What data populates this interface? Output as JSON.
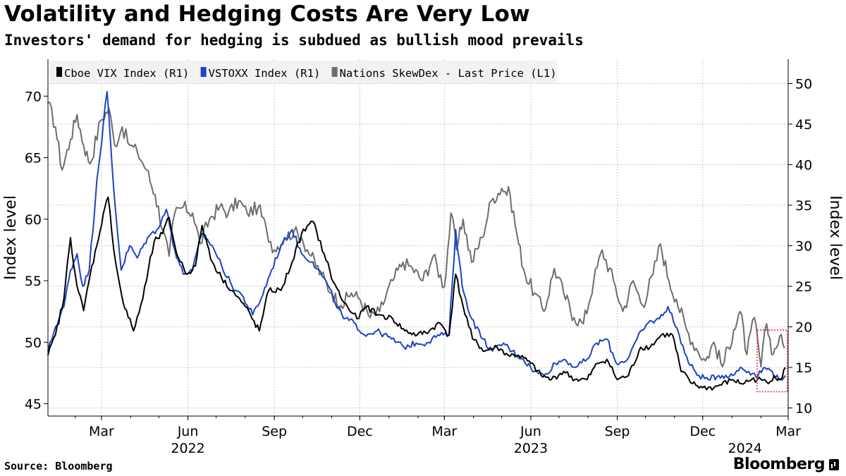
{
  "title": "Volatility and Hedging Costs Are Very Low",
  "subtitle": "Investors' demand for hedging is subdued as bullish mood prevails",
  "source": "Source: Bloomberg",
  "logo": "Bloomberg",
  "chart_data": {
    "type": "line",
    "legend_position": "top-left",
    "grid": true,
    "y_left": {
      "label": "Index level",
      "range": [
        44,
        73
      ],
      "ticks": [
        45,
        50,
        55,
        60,
        65,
        70
      ]
    },
    "y_right": {
      "label": "Index level",
      "range": [
        9,
        53
      ],
      "ticks": [
        10,
        15,
        20,
        25,
        30,
        35,
        40,
        45,
        50
      ]
    },
    "x_axis": {
      "range": [
        "2022-01-03",
        "2024-03-01"
      ],
      "ticks": [
        {
          "date": "2022-03-01",
          "label": "Mar"
        },
        {
          "date": "2022-06-01",
          "label": "Jun"
        },
        {
          "date": "2022-09-01",
          "label": "Sep"
        },
        {
          "date": "2022-12-01",
          "label": "Dec"
        },
        {
          "date": "2023-03-01",
          "label": "Mar"
        },
        {
          "date": "2023-06-01",
          "label": "Jun"
        },
        {
          "date": "2023-09-01",
          "label": "Sep"
        },
        {
          "date": "2023-12-01",
          "label": "Dec"
        },
        {
          "date": "2024-03-01",
          "label": "Mar"
        }
      ],
      "year_labels": [
        {
          "date": "2022-06-01",
          "label": "2022"
        },
        {
          "date": "2023-06-01",
          "label": "2023"
        },
        {
          "date": "2024-01-15",
          "label": "2024"
        }
      ]
    },
    "highlight_box": {
      "x_range": [
        "2024-01-28",
        "2024-02-29"
      ],
      "y_right_range": [
        12.0,
        19.6
      ],
      "color": "#e2304a"
    },
    "series": [
      {
        "name": "Nations SkewDex - Last Price (L1)",
        "axis": "left",
        "color": "#6d6d6d",
        "points": [
          [
            "2022-01-03",
            69.5
          ],
          [
            "2022-01-11",
            67.5
          ],
          [
            "2022-01-18",
            64.0
          ],
          [
            "2022-01-27",
            66.5
          ],
          [
            "2022-02-03",
            68.5
          ],
          [
            "2022-02-10",
            66.0
          ],
          [
            "2022-02-17",
            64.5
          ],
          [
            "2022-02-28",
            68.0
          ],
          [
            "2022-03-09",
            69.0
          ],
          [
            "2022-03-15",
            66.0
          ],
          [
            "2022-03-23",
            67.5
          ],
          [
            "2022-03-31",
            66.0
          ],
          [
            "2022-04-08",
            65.5
          ],
          [
            "2022-04-18",
            64.0
          ],
          [
            "2022-04-27",
            62.0
          ],
          [
            "2022-05-06",
            59.0
          ],
          [
            "2022-05-12",
            57.0
          ],
          [
            "2022-05-18",
            60.5
          ],
          [
            "2022-05-27",
            61.0
          ],
          [
            "2022-06-06",
            60.5
          ],
          [
            "2022-06-14",
            58.0
          ],
          [
            "2022-06-24",
            60.0
          ],
          [
            "2022-07-05",
            61.0
          ],
          [
            "2022-07-14",
            60.5
          ],
          [
            "2022-07-25",
            61.5
          ],
          [
            "2022-08-03",
            60.5
          ],
          [
            "2022-08-15",
            61.0
          ],
          [
            "2022-08-24",
            59.0
          ],
          [
            "2022-09-01",
            57.5
          ],
          [
            "2022-09-12",
            58.5
          ],
          [
            "2022-09-22",
            59.0
          ],
          [
            "2022-09-30",
            58.5
          ],
          [
            "2022-10-10",
            57.0
          ],
          [
            "2022-10-21",
            55.5
          ],
          [
            "2022-11-01",
            54.0
          ],
          [
            "2022-11-11",
            53.0
          ],
          [
            "2022-11-22",
            54.0
          ],
          [
            "2022-12-01",
            53.5
          ],
          [
            "2022-12-12",
            52.0
          ],
          [
            "2022-12-22",
            52.5
          ],
          [
            "2023-01-05",
            55.0
          ],
          [
            "2023-01-16",
            56.5
          ],
          [
            "2023-01-26",
            56.0
          ],
          [
            "2023-02-06",
            55.0
          ],
          [
            "2023-02-17",
            57.0
          ],
          [
            "2023-03-01",
            54.5
          ],
          [
            "2023-03-08",
            60.5
          ],
          [
            "2023-03-14",
            57.5
          ],
          [
            "2023-03-21",
            60.0
          ],
          [
            "2023-03-30",
            56.5
          ],
          [
            "2023-04-10",
            58.5
          ],
          [
            "2023-04-20",
            61.5
          ],
          [
            "2023-05-01",
            62.5
          ],
          [
            "2023-05-10",
            62.0
          ],
          [
            "2023-05-19",
            58.0
          ],
          [
            "2023-05-26",
            55.5
          ],
          [
            "2023-06-05",
            54.0
          ],
          [
            "2023-06-15",
            52.5
          ],
          [
            "2023-06-26",
            56.0
          ],
          [
            "2023-07-06",
            54.0
          ],
          [
            "2023-07-17",
            52.0
          ],
          [
            "2023-07-27",
            51.5
          ],
          [
            "2023-08-07",
            55.0
          ],
          [
            "2023-08-16",
            57.5
          ],
          [
            "2023-08-28",
            55.0
          ],
          [
            "2023-09-07",
            52.5
          ],
          [
            "2023-09-18",
            55.0
          ],
          [
            "2023-09-28",
            53.0
          ],
          [
            "2023-10-09",
            55.5
          ],
          [
            "2023-10-17",
            58.0
          ],
          [
            "2023-10-26",
            55.0
          ],
          [
            "2023-11-03",
            53.5
          ],
          [
            "2023-11-14",
            51.0
          ],
          [
            "2023-11-24",
            49.5
          ],
          [
            "2023-12-04",
            48.5
          ],
          [
            "2023-12-13",
            50.0
          ],
          [
            "2023-12-22",
            48.0
          ],
          [
            "2024-01-03",
            51.0
          ],
          [
            "2024-01-10",
            52.5
          ],
          [
            "2024-01-17",
            49.0
          ],
          [
            "2024-01-25",
            52.0
          ],
          [
            "2024-02-01",
            48.0
          ],
          [
            "2024-02-07",
            51.5
          ],
          [
            "2024-02-14",
            49.0
          ],
          [
            "2024-02-21",
            50.5
          ],
          [
            "2024-02-26",
            49.5
          ]
        ]
      },
      {
        "name": "VSTOXX Index (R1)",
        "axis": "right",
        "color": "#1a44c4",
        "points": [
          [
            "2022-01-03",
            17.0
          ],
          [
            "2022-01-11",
            20.0
          ],
          [
            "2022-01-20",
            22.5
          ],
          [
            "2022-01-27",
            27.0
          ],
          [
            "2022-02-03",
            29.0
          ],
          [
            "2022-02-09",
            25.0
          ],
          [
            "2022-02-16",
            27.0
          ],
          [
            "2022-02-24",
            38.0
          ],
          [
            "2022-03-07",
            49.0
          ],
          [
            "2022-03-14",
            37.0
          ],
          [
            "2022-03-22",
            27.0
          ],
          [
            "2022-03-31",
            30.0
          ],
          [
            "2022-04-08",
            28.5
          ],
          [
            "2022-04-19",
            31.0
          ],
          [
            "2022-04-29",
            32.0
          ],
          [
            "2022-05-09",
            34.5
          ],
          [
            "2022-05-18",
            29.5
          ],
          [
            "2022-05-27",
            26.5
          ],
          [
            "2022-06-06",
            27.0
          ],
          [
            "2022-06-16",
            31.5
          ],
          [
            "2022-06-27",
            30.0
          ],
          [
            "2022-07-07",
            27.5
          ],
          [
            "2022-07-18",
            25.0
          ],
          [
            "2022-07-28",
            24.0
          ],
          [
            "2022-08-09",
            21.5
          ],
          [
            "2022-08-18",
            23.5
          ],
          [
            "2022-08-29",
            27.0
          ],
          [
            "2022-09-08",
            30.0
          ],
          [
            "2022-09-20",
            32.0
          ],
          [
            "2022-09-30",
            29.0
          ],
          [
            "2022-10-12",
            28.0
          ],
          [
            "2022-10-24",
            26.0
          ],
          [
            "2022-11-03",
            23.5
          ],
          [
            "2022-11-14",
            21.0
          ],
          [
            "2022-11-25",
            20.5
          ],
          [
            "2022-12-06",
            19.0
          ],
          [
            "2022-12-19",
            19.5
          ],
          [
            "2023-01-04",
            18.5
          ],
          [
            "2023-01-17",
            17.5
          ],
          [
            "2023-01-30",
            18.0
          ],
          [
            "2023-02-10",
            18.0
          ],
          [
            "2023-02-22",
            19.0
          ],
          [
            "2023-03-06",
            19.0
          ],
          [
            "2023-03-13",
            32.0
          ],
          [
            "2023-03-20",
            25.0
          ],
          [
            "2023-03-30",
            21.0
          ],
          [
            "2023-04-11",
            18.5
          ],
          [
            "2023-04-21",
            17.0
          ],
          [
            "2023-05-03",
            18.0
          ],
          [
            "2023-05-12",
            17.0
          ],
          [
            "2023-05-24",
            16.0
          ],
          [
            "2023-06-05",
            14.5
          ],
          [
            "2023-06-15",
            14.0
          ],
          [
            "2023-06-27",
            15.5
          ],
          [
            "2023-07-07",
            16.0
          ],
          [
            "2023-07-19",
            15.0
          ],
          [
            "2023-07-31",
            16.0
          ],
          [
            "2023-08-10",
            18.0
          ],
          [
            "2023-08-21",
            18.5
          ],
          [
            "2023-08-31",
            15.5
          ],
          [
            "2023-09-12",
            16.0
          ],
          [
            "2023-09-22",
            18.5
          ],
          [
            "2023-10-04",
            20.5
          ],
          [
            "2023-10-16",
            21.0
          ],
          [
            "2023-10-25",
            22.5
          ],
          [
            "2023-11-06",
            19.0
          ],
          [
            "2023-11-16",
            15.5
          ],
          [
            "2023-11-27",
            14.0
          ],
          [
            "2023-12-07",
            13.5
          ],
          [
            "2023-12-18",
            14.0
          ],
          [
            "2024-01-02",
            14.0
          ],
          [
            "2024-01-10",
            15.0
          ],
          [
            "2024-01-19",
            14.5
          ],
          [
            "2024-01-29",
            14.0
          ],
          [
            "2024-02-05",
            15.0
          ],
          [
            "2024-02-13",
            14.5
          ],
          [
            "2024-02-20",
            13.5
          ],
          [
            "2024-02-27",
            14.0
          ]
        ]
      },
      {
        "name": "Cboe VIX Index (R1)",
        "axis": "right",
        "color": "#000000",
        "points": [
          [
            "2022-01-03",
            16.5
          ],
          [
            "2022-01-11",
            19.0
          ],
          [
            "2022-01-20",
            23.5
          ],
          [
            "2022-01-27",
            31.0
          ],
          [
            "2022-02-03",
            25.0
          ],
          [
            "2022-02-10",
            22.0
          ],
          [
            "2022-02-17",
            26.5
          ],
          [
            "2022-02-24",
            30.0
          ],
          [
            "2022-03-03",
            34.0
          ],
          [
            "2022-03-08",
            36.0
          ],
          [
            "2022-03-16",
            28.0
          ],
          [
            "2022-03-24",
            23.0
          ],
          [
            "2022-04-04",
            19.5
          ],
          [
            "2022-04-14",
            23.5
          ],
          [
            "2022-04-26",
            30.5
          ],
          [
            "2022-05-05",
            31.5
          ],
          [
            "2022-05-12",
            33.5
          ],
          [
            "2022-05-20",
            29.0
          ],
          [
            "2022-05-31",
            26.5
          ],
          [
            "2022-06-09",
            27.5
          ],
          [
            "2022-06-16",
            32.5
          ],
          [
            "2022-06-27",
            28.0
          ],
          [
            "2022-07-07",
            26.0
          ],
          [
            "2022-07-18",
            24.5
          ],
          [
            "2022-08-01",
            22.5
          ],
          [
            "2022-08-16",
            19.5
          ],
          [
            "2022-08-26",
            24.5
          ],
          [
            "2022-09-08",
            24.5
          ],
          [
            "2022-09-20",
            28.0
          ],
          [
            "2022-09-30",
            31.5
          ],
          [
            "2022-10-12",
            33.0
          ],
          [
            "2022-10-24",
            29.0
          ],
          [
            "2022-11-03",
            25.5
          ],
          [
            "2022-11-14",
            23.0
          ],
          [
            "2022-11-28",
            21.0
          ],
          [
            "2022-12-08",
            22.5
          ],
          [
            "2022-12-20",
            21.5
          ],
          [
            "2023-01-05",
            21.0
          ],
          [
            "2023-01-18",
            19.5
          ],
          [
            "2023-01-31",
            19.0
          ],
          [
            "2023-02-13",
            19.5
          ],
          [
            "2023-02-24",
            20.5
          ],
          [
            "2023-03-06",
            19.0
          ],
          [
            "2023-03-13",
            26.5
          ],
          [
            "2023-03-21",
            22.5
          ],
          [
            "2023-03-31",
            18.5
          ],
          [
            "2023-04-13",
            17.0
          ],
          [
            "2023-04-26",
            17.5
          ],
          [
            "2023-05-08",
            16.5
          ],
          [
            "2023-05-19",
            16.5
          ],
          [
            "2023-06-01",
            15.5
          ],
          [
            "2023-06-12",
            14.0
          ],
          [
            "2023-06-23",
            13.5
          ],
          [
            "2023-07-06",
            14.5
          ],
          [
            "2023-07-18",
            13.5
          ],
          [
            "2023-07-31",
            13.5
          ],
          [
            "2023-08-11",
            15.5
          ],
          [
            "2023-08-21",
            16.0
          ],
          [
            "2023-09-01",
            13.5
          ],
          [
            "2023-09-13",
            14.0
          ],
          [
            "2023-09-26",
            17.5
          ],
          [
            "2023-10-06",
            17.5
          ],
          [
            "2023-10-18",
            19.0
          ],
          [
            "2023-10-30",
            19.0
          ],
          [
            "2023-11-08",
            14.5
          ],
          [
            "2023-11-20",
            13.0
          ],
          [
            "2023-12-01",
            12.5
          ],
          [
            "2023-12-13",
            12.5
          ],
          [
            "2024-01-02",
            13.5
          ],
          [
            "2024-01-11",
            13.0
          ],
          [
            "2024-01-22",
            13.5
          ],
          [
            "2024-02-01",
            13.5
          ],
          [
            "2024-02-09",
            13.0
          ],
          [
            "2024-02-15",
            14.0
          ],
          [
            "2024-02-22",
            13.5
          ],
          [
            "2024-02-27",
            15.0
          ]
        ]
      }
    ]
  }
}
